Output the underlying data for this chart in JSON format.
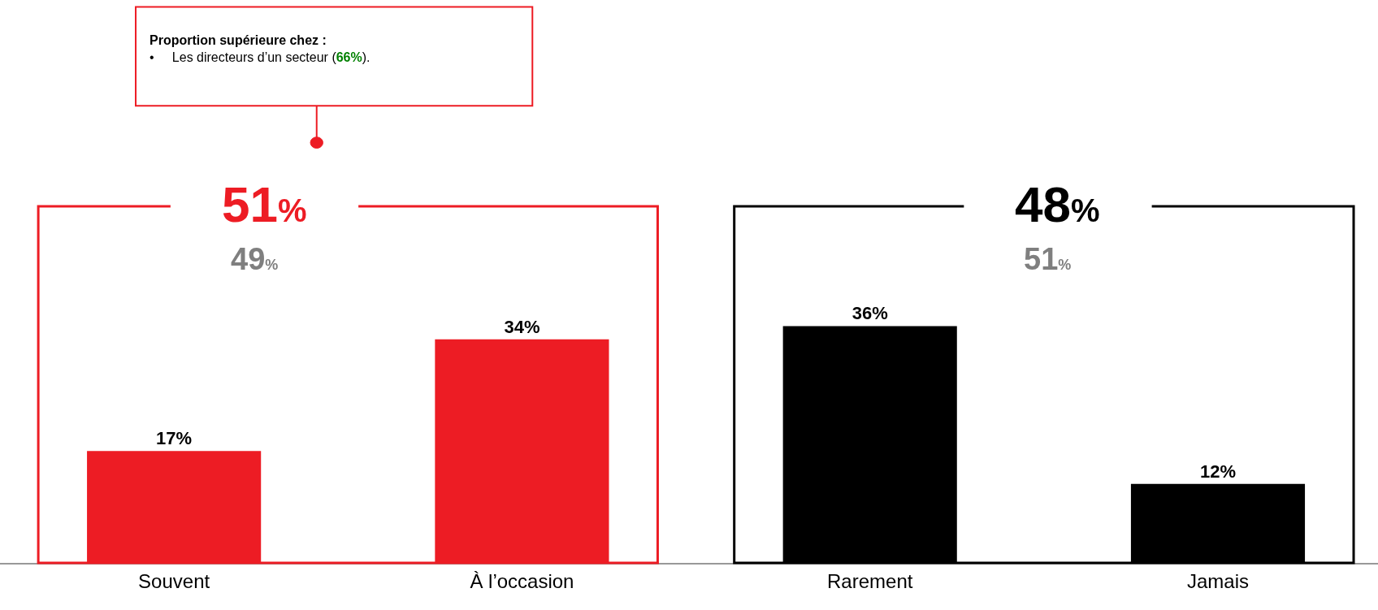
{
  "chart_data": {
    "type": "bar",
    "categories": [
      "Souvent",
      "À l’occasion",
      "Rarement",
      "Jamais"
    ],
    "values": [
      17,
      34,
      36,
      12
    ],
    "colors": [
      "#ed1c24",
      "#ed1c24",
      "#000000",
      "#000000"
    ],
    "value_labels": [
      "17%",
      "34%",
      "36%",
      "12%"
    ],
    "annotations": [
      "51%",
      "49%",
      "48%",
      "51%",
      "Proportion supérieure chez :",
      "•     Les directeurs d’un secteur (66%)."
    ]
  }
}
